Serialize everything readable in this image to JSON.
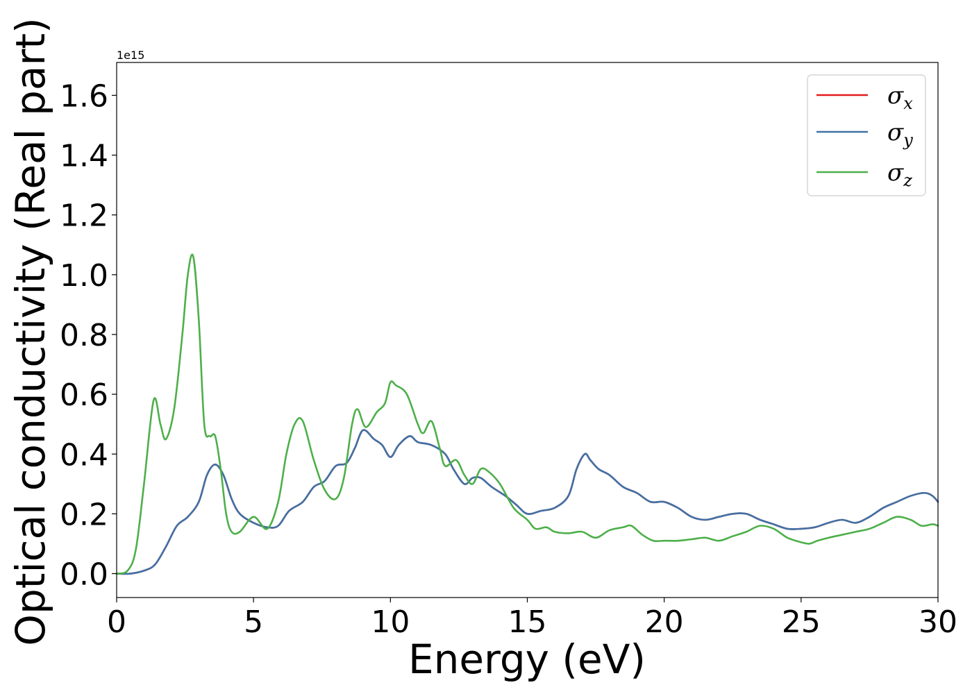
{
  "chart_data": {
    "type": "line",
    "title": "",
    "xlabel": "Energy (eV)",
    "ylabel": "Optical conductivity (Real part)",
    "y_offset_text": "1e15",
    "xlim": [
      0,
      30
    ],
    "ylim": [
      -0.08,
      1.71
    ],
    "x_ticks": [
      0,
      5,
      10,
      15,
      20,
      25,
      30
    ],
    "y_ticks": [
      0.0,
      0.2,
      0.4,
      0.6,
      0.8,
      1.0,
      1.2,
      1.4,
      1.6
    ],
    "x_tick_labels": [
      "0",
      "5",
      "10",
      "15",
      "20",
      "25",
      "30"
    ],
    "y_tick_labels": [
      "0.0",
      "0.2",
      "0.4",
      "0.6",
      "0.8",
      "1.0",
      "1.2",
      "1.4",
      "1.6"
    ],
    "grid": false,
    "legend_position": "top-right",
    "series": [
      {
        "name": "σx",
        "symbol": "σ",
        "subscript": "x",
        "color": "#e41a1c",
        "x": [
          0,
          0.5,
          1.0,
          1.4,
          1.8,
          2.2,
          2.6,
          3.0,
          3.3,
          3.6,
          3.9,
          4.2,
          4.5,
          5.0,
          5.5,
          5.9,
          6.3,
          6.8,
          7.2,
          7.6,
          8.0,
          8.4,
          8.7,
          9.0,
          9.4,
          9.7,
          10.0,
          10.3,
          10.7,
          11.0,
          11.5,
          12.0,
          12.3,
          12.7,
          13.0,
          13.3,
          13.7,
          14.2,
          14.6,
          15.0,
          15.5,
          16.0,
          16.5,
          16.8,
          17.1,
          17.3,
          17.6,
          18.0,
          18.5,
          19.0,
          19.5,
          20.0,
          20.5,
          21.0,
          21.5,
          22.0,
          22.5,
          23.0,
          23.5,
          24.0,
          24.5,
          25.0,
          25.5,
          26.0,
          26.5,
          27.0,
          27.5,
          28.0,
          28.5,
          29.0,
          29.5,
          29.8,
          30.0
        ],
        "values": [
          0,
          0.0,
          0.01,
          0.03,
          0.09,
          0.16,
          0.19,
          0.24,
          0.33,
          0.365,
          0.33,
          0.25,
          0.2,
          0.17,
          0.155,
          0.16,
          0.21,
          0.24,
          0.29,
          0.31,
          0.36,
          0.37,
          0.42,
          0.48,
          0.45,
          0.43,
          0.39,
          0.43,
          0.46,
          0.44,
          0.43,
          0.4,
          0.35,
          0.3,
          0.32,
          0.32,
          0.29,
          0.26,
          0.23,
          0.2,
          0.21,
          0.22,
          0.26,
          0.35,
          0.4,
          0.38,
          0.35,
          0.33,
          0.29,
          0.27,
          0.24,
          0.24,
          0.22,
          0.19,
          0.18,
          0.19,
          0.2,
          0.2,
          0.18,
          0.165,
          0.15,
          0.15,
          0.155,
          0.17,
          0.18,
          0.17,
          0.19,
          0.22,
          0.24,
          0.26,
          0.27,
          0.26,
          0.24
        ]
      },
      {
        "name": "σy",
        "symbol": "σ",
        "subscript": "y",
        "color": "#3f72a6",
        "x": [
          0,
          0.5,
          1.0,
          1.4,
          1.8,
          2.2,
          2.6,
          3.0,
          3.3,
          3.6,
          3.9,
          4.2,
          4.5,
          5.0,
          5.5,
          5.9,
          6.3,
          6.8,
          7.2,
          7.6,
          8.0,
          8.4,
          8.7,
          9.0,
          9.4,
          9.7,
          10.0,
          10.3,
          10.7,
          11.0,
          11.5,
          12.0,
          12.3,
          12.7,
          13.0,
          13.3,
          13.7,
          14.2,
          14.6,
          15.0,
          15.5,
          16.0,
          16.5,
          16.8,
          17.1,
          17.3,
          17.6,
          18.0,
          18.5,
          19.0,
          19.5,
          20.0,
          20.5,
          21.0,
          21.5,
          22.0,
          22.5,
          23.0,
          23.5,
          24.0,
          24.5,
          25.0,
          25.5,
          26.0,
          26.5,
          27.0,
          27.5,
          28.0,
          28.5,
          29.0,
          29.5,
          29.8,
          30.0
        ],
        "values": [
          0,
          0.0,
          0.01,
          0.03,
          0.09,
          0.16,
          0.19,
          0.24,
          0.33,
          0.365,
          0.33,
          0.25,
          0.2,
          0.17,
          0.155,
          0.16,
          0.21,
          0.24,
          0.29,
          0.31,
          0.36,
          0.37,
          0.42,
          0.48,
          0.45,
          0.43,
          0.39,
          0.43,
          0.46,
          0.44,
          0.43,
          0.4,
          0.35,
          0.3,
          0.32,
          0.32,
          0.29,
          0.26,
          0.23,
          0.2,
          0.21,
          0.22,
          0.26,
          0.35,
          0.4,
          0.38,
          0.35,
          0.33,
          0.29,
          0.27,
          0.24,
          0.24,
          0.22,
          0.19,
          0.18,
          0.19,
          0.2,
          0.2,
          0.18,
          0.165,
          0.15,
          0.15,
          0.155,
          0.17,
          0.18,
          0.17,
          0.19,
          0.22,
          0.24,
          0.26,
          0.27,
          0.26,
          0.24
        ]
      },
      {
        "name": "σz",
        "symbol": "σ",
        "subscript": "z",
        "color": "#4daf4a",
        "x": [
          0,
          0.4,
          0.7,
          1.0,
          1.35,
          1.6,
          1.8,
          2.1,
          2.4,
          2.6,
          2.8,
          3.0,
          3.2,
          3.4,
          3.6,
          3.8,
          4.0,
          4.2,
          4.5,
          5.0,
          5.5,
          5.9,
          6.2,
          6.5,
          6.8,
          7.2,
          7.6,
          8.0,
          8.3,
          8.6,
          8.8,
          9.1,
          9.5,
          9.8,
          10.0,
          10.2,
          10.6,
          11.0,
          11.2,
          11.5,
          11.8,
          12.0,
          12.4,
          12.7,
          13.0,
          13.3,
          13.6,
          14.0,
          14.5,
          15.0,
          15.3,
          15.7,
          16.0,
          16.5,
          17.0,
          17.5,
          18.0,
          18.5,
          18.8,
          19.2,
          19.6,
          20.0,
          20.5,
          21.0,
          21.5,
          22.0,
          22.5,
          23.0,
          23.5,
          24.0,
          24.5,
          25.0,
          25.3,
          25.6,
          26.0,
          26.5,
          27.0,
          27.5,
          28.0,
          28.5,
          29.0,
          29.4,
          29.8,
          30.0
        ],
        "values": [
          0,
          0.01,
          0.08,
          0.3,
          0.58,
          0.5,
          0.45,
          0.55,
          0.8,
          1.0,
          1.06,
          0.85,
          0.5,
          0.46,
          0.46,
          0.35,
          0.2,
          0.14,
          0.14,
          0.19,
          0.15,
          0.24,
          0.4,
          0.5,
          0.51,
          0.38,
          0.28,
          0.25,
          0.32,
          0.5,
          0.55,
          0.49,
          0.54,
          0.57,
          0.64,
          0.63,
          0.6,
          0.5,
          0.47,
          0.51,
          0.42,
          0.36,
          0.38,
          0.33,
          0.3,
          0.35,
          0.34,
          0.3,
          0.22,
          0.18,
          0.15,
          0.155,
          0.14,
          0.135,
          0.14,
          0.12,
          0.145,
          0.155,
          0.16,
          0.13,
          0.11,
          0.11,
          0.11,
          0.115,
          0.12,
          0.11,
          0.125,
          0.14,
          0.16,
          0.15,
          0.12,
          0.105,
          0.1,
          0.11,
          0.12,
          0.13,
          0.14,
          0.15,
          0.17,
          0.19,
          0.18,
          0.16,
          0.165,
          0.16
        ]
      }
    ]
  }
}
